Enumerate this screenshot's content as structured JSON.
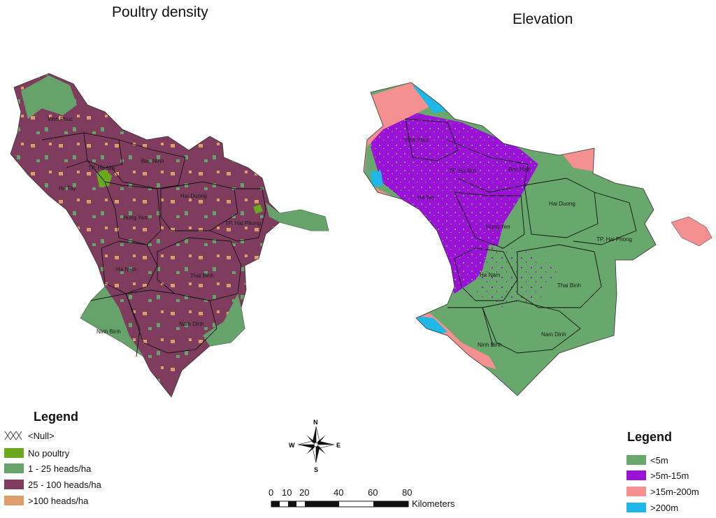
{
  "left_map": {
    "title": "Poultry density",
    "provinces": [
      "Vinh Phuc",
      "TP. Ha Noi",
      "Bac Ninh",
      "Ha Tay",
      "Hai Duong",
      "Hung Yen",
      "TP. Hai Phong",
      "Ha Nam",
      "Thai Binh",
      "Nam Dinh",
      "Ninh Binh"
    ],
    "legend": {
      "title": "Legend",
      "items": [
        {
          "label": "<Null>",
          "color": "#ffffff",
          "pattern": "cross-hatch"
        },
        {
          "label": "No poultry",
          "color": "#6aa81c"
        },
        {
          "label": "1 - 25 heads/ha",
          "color": "#66a36a"
        },
        {
          "label": "25 - 100 heads/ha",
          "color": "#7f3c5f"
        },
        {
          "label": ">100 heads/ha",
          "color": "#dd9e6b"
        }
      ]
    }
  },
  "right_map": {
    "title": "Elevation",
    "provinces": [
      "Vinh Phuc",
      "TP. Ha Noi",
      "Bac Ninh",
      "Ha Tay",
      "Hai Duong",
      "Hung Yen",
      "TP. Hai Phong",
      "Ha Nam",
      "Thai Binh",
      "Nam Dinh",
      "Ninh Binh"
    ],
    "legend": {
      "title": "Legend",
      "items": [
        {
          "label": "<5m",
          "color": "#68a86c"
        },
        {
          "label": ">5m-15m",
          "color": "#9b11d8"
        },
        {
          "label": ">15m-200m",
          "color": "#f49090"
        },
        {
          "label": ">200m",
          "color": "#1db8e8"
        }
      ]
    }
  },
  "compass": {
    "n": "N",
    "s": "S",
    "e": "E",
    "w": "W",
    "icon": "north-arrow-compass-rose"
  },
  "scale_bar": {
    "ticks": [
      "0",
      "10",
      "20",
      "40",
      "60",
      "80"
    ],
    "unit": "Kilometers"
  }
}
